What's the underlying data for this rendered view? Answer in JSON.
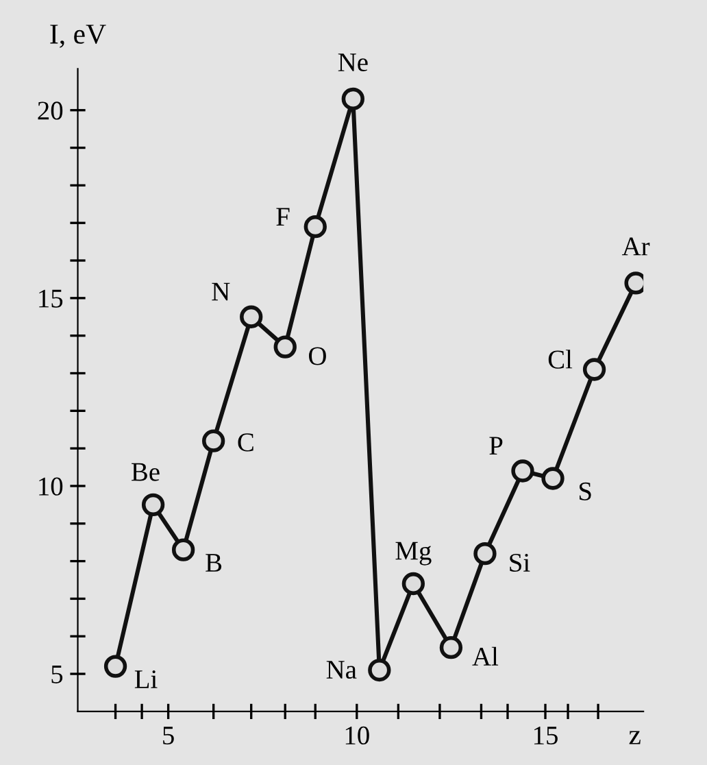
{
  "chart_data": {
    "type": "line",
    "xlabel": "z",
    "ylabel": "I, eV",
    "series": [
      {
        "color": "#111111",
        "x": [
          3.6,
          4.6,
          5.4,
          6.2,
          7.2,
          8.1,
          8.9,
          9.9,
          10.6,
          11.5,
          12.5,
          13.4,
          14.4,
          15.2,
          16.3,
          17.4
        ],
        "values": [
          5.2,
          9.5,
          8.3,
          11.2,
          14.5,
          13.7,
          16.9,
          20.3,
          5.1,
          7.4,
          5.7,
          8.2,
          10.4,
          10.2,
          13.1,
          15.4
        ]
      }
    ],
    "annotations": [
      {
        "text": "Li",
        "x": 3.6,
        "y": 5.2
      },
      {
        "text": "Be",
        "x": 4.6,
        "y": 9.5
      },
      {
        "text": "B",
        "x": 5.4,
        "y": 8.3
      },
      {
        "text": "C",
        "x": 6.2,
        "y": 11.2
      },
      {
        "text": "N",
        "x": 7.2,
        "y": 14.5
      },
      {
        "text": "O",
        "x": 8.1,
        "y": 13.7
      },
      {
        "text": "F",
        "x": 8.9,
        "y": 16.9
      },
      {
        "text": "Ne",
        "x": 9.9,
        "y": 20.3
      },
      {
        "text": "Na",
        "x": 10.6,
        "y": 5.1
      },
      {
        "text": "Mg",
        "x": 11.5,
        "y": 7.4
      },
      {
        "text": "Al",
        "x": 12.5,
        "y": 5.7
      },
      {
        "text": "Si",
        "x": 13.4,
        "y": 8.2
      },
      {
        "text": "P",
        "x": 14.4,
        "y": 10.4
      },
      {
        "text": "S",
        "x": 15.2,
        "y": 10.2
      },
      {
        "text": "Cl",
        "x": 16.3,
        "y": 13.1
      },
      {
        "text": "Ar",
        "x": 17.4,
        "y": 15.4
      }
    ],
    "xlim": [
      2.6,
      17.6
    ],
    "ylim": [
      4,
      21.1
    ],
    "xticks": [
      {
        "value": 3.6,
        "label": null
      },
      {
        "value": 4.3,
        "label": null
      },
      5,
      {
        "value": 6.2,
        "label": null
      },
      {
        "value": 7.2,
        "label": null
      },
      {
        "value": 8.1,
        "label": null
      },
      {
        "value": 8.9,
        "label": null
      },
      10,
      {
        "value": 11.1,
        "label": null
      },
      {
        "value": 12.2,
        "label": null
      },
      {
        "value": 13.3,
        "label": null
      },
      {
        "value": 14.0,
        "label": null
      },
      15,
      {
        "value": 15.6,
        "label": null
      },
      {
        "value": 16.4,
        "label": null
      }
    ],
    "yticks": [
      5,
      {
        "value": 6,
        "label": null
      },
      {
        "value": 7,
        "label": null
      },
      {
        "value": 8,
        "label": null
      },
      {
        "value": 9,
        "label": null
      },
      10,
      {
        "value": 11,
        "label": null
      },
      {
        "value": 12,
        "label": null
      },
      {
        "value": 13,
        "label": null
      },
      {
        "value": 14,
        "label": null
      },
      15,
      {
        "value": 16,
        "label": null
      },
      {
        "value": 17,
        "label": null
      },
      {
        "value": 18,
        "label": null
      },
      {
        "value": 19,
        "label": null
      },
      20
    ],
    "marker": "circle",
    "line_style": "solid",
    "grid": false,
    "legend": false
  }
}
